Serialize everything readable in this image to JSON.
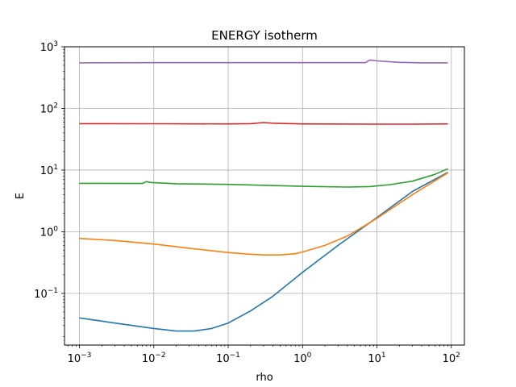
{
  "chart_data": {
    "type": "line",
    "title": "ENERGY isotherm",
    "xlabel": "rho",
    "ylabel": "E",
    "xscale": "log",
    "yscale": "log",
    "xlim": [
      0.00063,
      150
    ],
    "ylim": [
      0.0145,
      1000
    ],
    "grid": true,
    "xticks": [
      {
        "base": "10",
        "exp": "−3"
      },
      {
        "base": "10",
        "exp": "−2"
      },
      {
        "base": "10",
        "exp": "−1"
      },
      {
        "base": "10",
        "exp": "0"
      },
      {
        "base": "10",
        "exp": "1"
      },
      {
        "base": "10",
        "exp": "2"
      }
    ],
    "xtick_values": [
      0.001,
      0.01,
      0.1,
      1,
      10,
      100
    ],
    "yticks": [
      {
        "base": "10",
        "exp": "−1"
      },
      {
        "base": "10",
        "exp": "0"
      },
      {
        "base": "10",
        "exp": "1"
      },
      {
        "base": "10",
        "exp": "2"
      },
      {
        "base": "10",
        "exp": "3"
      }
    ],
    "ytick_values": [
      0.1,
      1,
      10,
      100,
      1000
    ],
    "series": [
      {
        "color": "#1f77b4",
        "x": [
          0.001,
          0.003,
          0.01,
          0.02,
          0.035,
          0.06,
          0.1,
          0.2,
          0.4,
          1,
          3,
          10,
          30,
          90
        ],
        "y": [
          0.04,
          0.033,
          0.027,
          0.0245,
          0.0245,
          0.027,
          0.033,
          0.052,
          0.09,
          0.22,
          0.6,
          1.7,
          4.5,
          9.2
        ]
      },
      {
        "color": "#ff7f0e",
        "x": [
          0.001,
          0.003,
          0.01,
          0.03,
          0.1,
          0.2,
          0.3,
          0.5,
          0.8,
          1,
          2,
          4,
          10,
          30,
          90
        ],
        "y": [
          0.78,
          0.72,
          0.63,
          0.54,
          0.46,
          0.43,
          0.42,
          0.42,
          0.44,
          0.47,
          0.6,
          0.85,
          1.65,
          4.0,
          9.0
        ]
      },
      {
        "color": "#2ca02c",
        "x": [
          0.001,
          0.007,
          0.008,
          0.009,
          0.02,
          0.1,
          1,
          4,
          8,
          15,
          30,
          60,
          90
        ],
        "y": [
          6.1,
          6.05,
          6.5,
          6.3,
          6.0,
          5.85,
          5.45,
          5.3,
          5.4,
          5.8,
          6.6,
          8.5,
          10.5
        ]
      },
      {
        "color": "#d62728",
        "x": [
          0.001,
          0.01,
          0.1,
          0.2,
          0.3,
          0.4,
          1,
          10,
          30,
          90
        ],
        "y": [
          56.5,
          56.3,
          56.0,
          56.5,
          59.0,
          57.5,
          56.0,
          55.5,
          55.5,
          56.0
        ]
      },
      {
        "color": "#9467bd",
        "x": [
          0.001,
          0.01,
          0.1,
          1,
          7,
          8,
          10,
          20,
          40,
          90
        ],
        "y": [
          550,
          552,
          552,
          552,
          552,
          610,
          590,
          560,
          550,
          550
        ]
      }
    ]
  }
}
